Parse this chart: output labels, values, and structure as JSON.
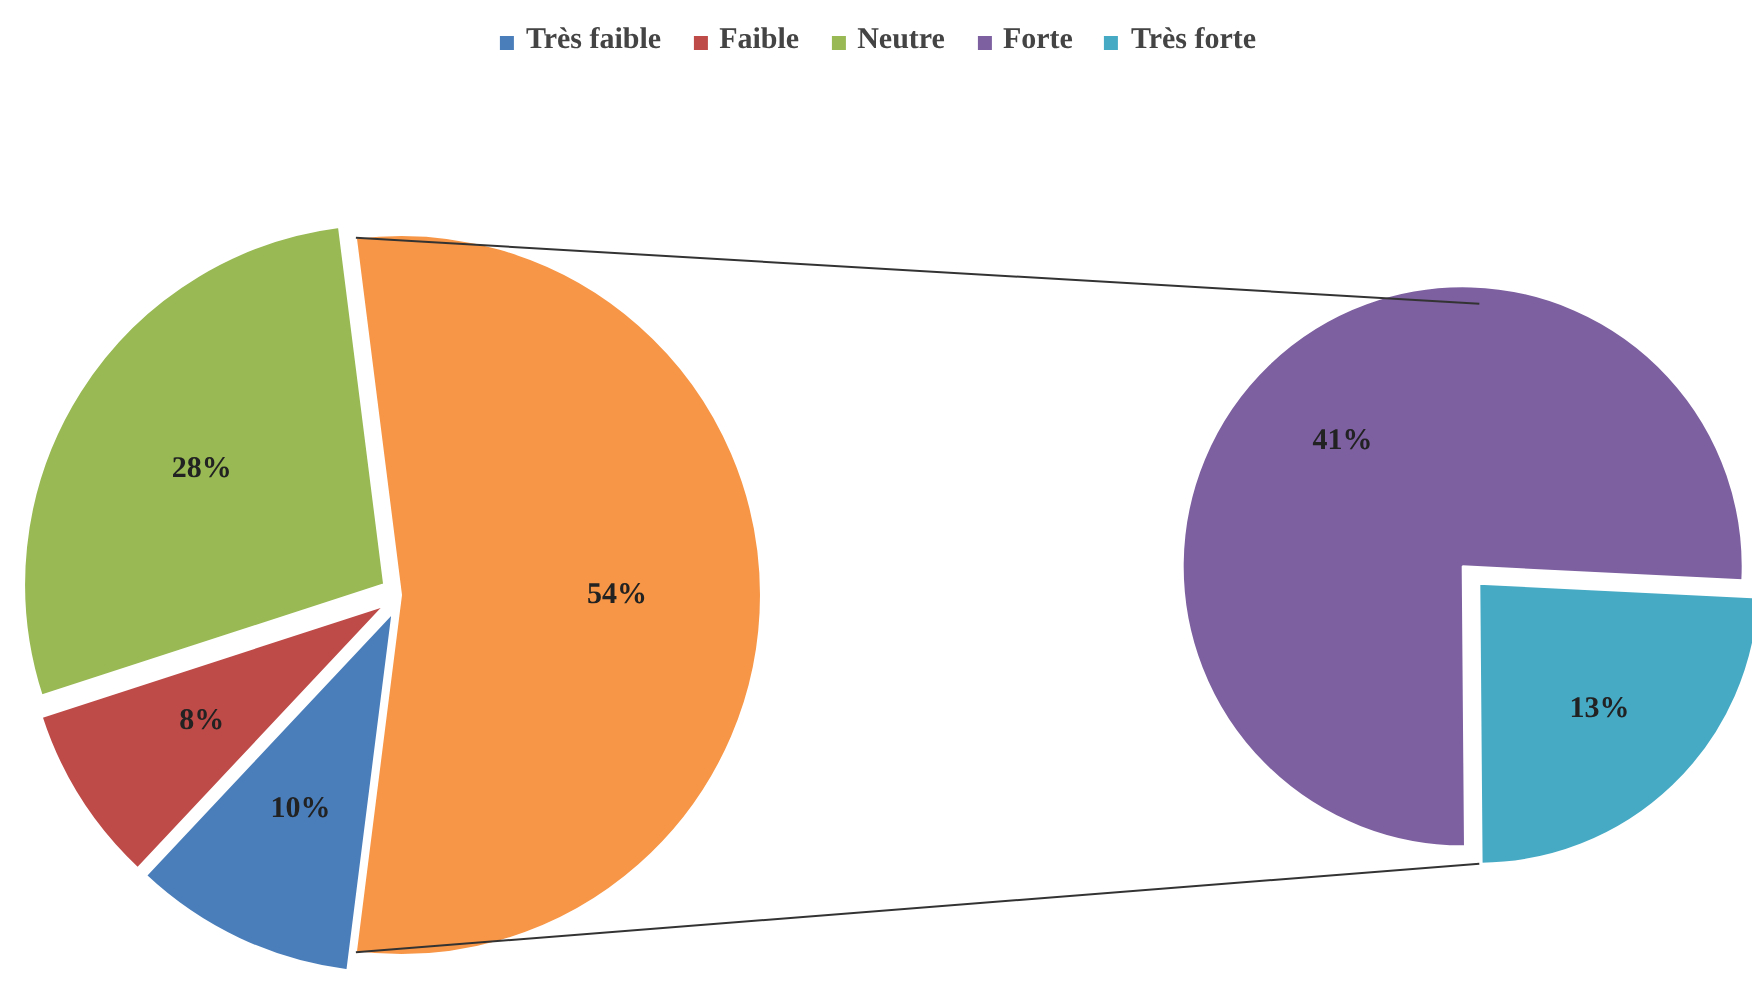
{
  "chart_data": [
    {
      "type": "pie",
      "categories": [
        "Très faible",
        "Faible",
        "Neutre",
        null
      ],
      "values": [
        10,
        8,
        28,
        54
      ],
      "colors": [
        "#4a7ebb",
        "#be4b48",
        "#98b954",
        "#f79646"
      ],
      "value_labels": [
        "10%",
        "8%",
        "28%",
        "54%"
      ],
      "legend": "top"
    },
    {
      "type": "pie",
      "categories": [
        "Forte",
        "Très forte"
      ],
      "values": [
        41,
        13
      ],
      "colors": [
        "#7d60a0",
        "#46aac5"
      ],
      "value_labels": [
        "41%",
        "13%"
      ],
      "legend": "top"
    }
  ]
}
